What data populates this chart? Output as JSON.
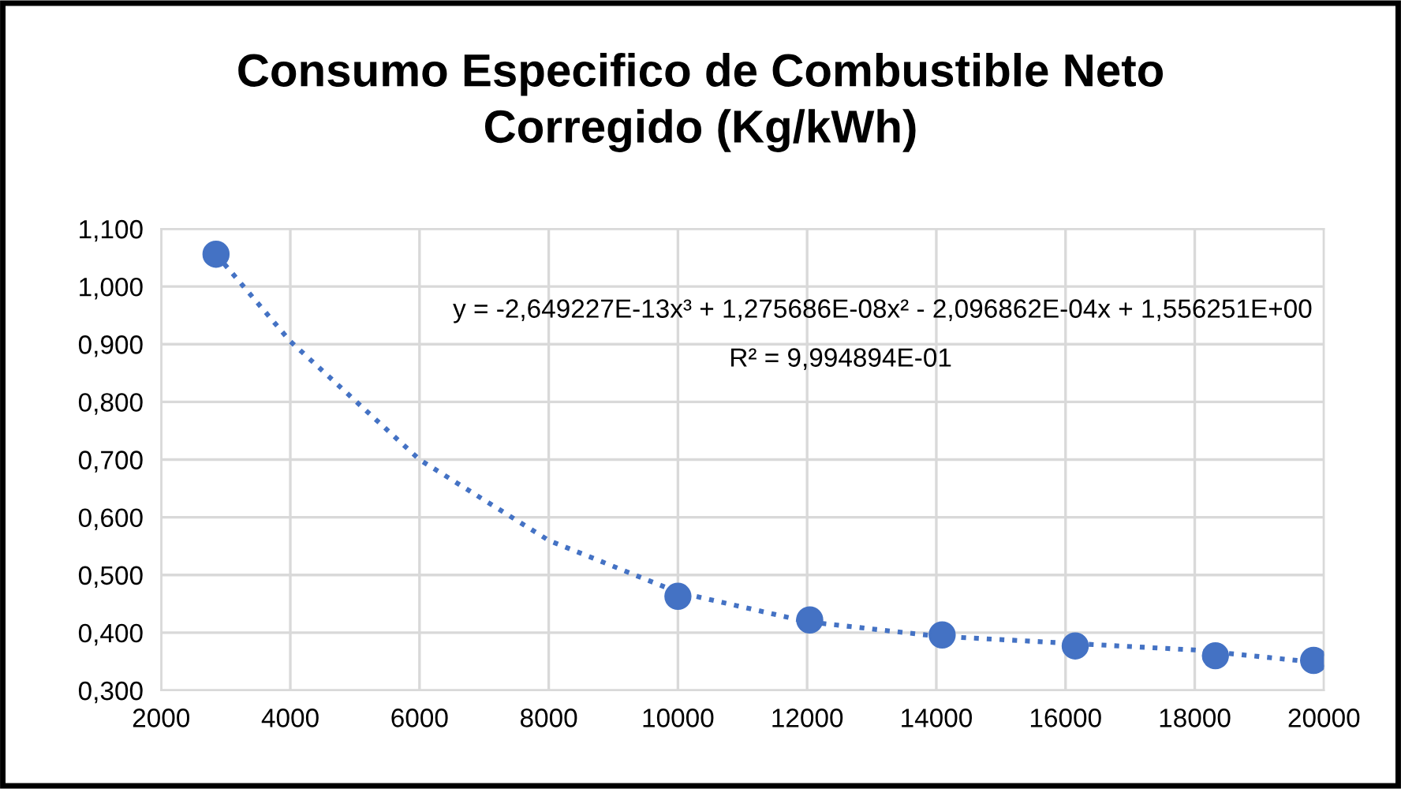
{
  "chart_data": {
    "type": "scatter",
    "title": "Consumo Especifico de Combustible Neto\nCorregido (Kg/kWh)",
    "series": [
      {
        "color": "#4472c4",
        "marker": "circle",
        "x": [
          2850,
          10000,
          12040,
          14090,
          16150,
          18320,
          19840
        ],
        "values": [
          1.056,
          0.463,
          0.422,
          0.396,
          0.377,
          0.36,
          0.352
        ]
      },
      {
        "type": "line",
        "color": "#4472c4",
        "line_style": "dotted",
        "marker": "none",
        "x": [
          2850,
          4000,
          6000,
          8000,
          10000,
          12000,
          14000,
          16000,
          18000,
          19840
        ],
        "values": [
          1.056,
          0.905,
          0.7,
          0.56,
          0.47,
          0.419,
          0.394,
          0.382,
          0.37,
          0.349
        ]
      }
    ],
    "annotations": [
      "y = -2,649227E-13x³ + 1,275686E-08x² - 2,096862E-04x + 1,556251E+00",
      "R² = 9,994894E-01"
    ],
    "xlim": [
      2000,
      20000
    ],
    "xticks": [
      2000,
      4000,
      6000,
      8000,
      10000,
      12000,
      14000,
      16000,
      18000,
      20000
    ],
    "ylim": [
      0.3,
      1.1
    ],
    "yticks": [
      {
        "value": 0.3,
        "label": "0,300"
      },
      {
        "value": 0.4,
        "label": "0,400"
      },
      {
        "value": 0.5,
        "label": "0,500"
      },
      {
        "value": 0.6,
        "label": "0,600"
      },
      {
        "value": 0.7,
        "label": "0,700"
      },
      {
        "value": 0.8,
        "label": "0,800"
      },
      {
        "value": 0.9,
        "label": "0,900"
      },
      {
        "value": 1.0,
        "label": "1,000"
      },
      {
        "value": 1.1,
        "label": "1,100"
      }
    ],
    "grid": true
  }
}
